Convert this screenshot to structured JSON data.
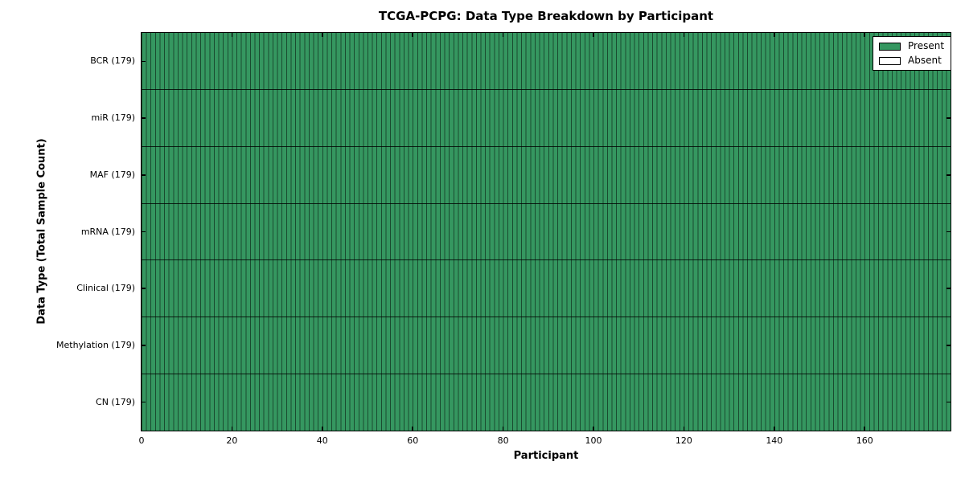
{
  "chart_data": {
    "type": "heatmap",
    "title": "TCGA-PCPG: Data Type Breakdown by Participant",
    "xlabel": "Participant",
    "ylabel": "Data Type (Total Sample Count)",
    "n_participants": 179,
    "xlim": [
      0,
      179
    ],
    "x_ticks": [
      0,
      20,
      40,
      60,
      80,
      100,
      120,
      140,
      160
    ],
    "grid": false,
    "rows": [
      {
        "label": "BCR (179)",
        "data_type": "BCR",
        "total_sample_count": 179,
        "present": 179,
        "absent": 0
      },
      {
        "label": "miR (179)",
        "data_type": "miR",
        "total_sample_count": 179,
        "present": 179,
        "absent": 0
      },
      {
        "label": "MAF (179)",
        "data_type": "MAF",
        "total_sample_count": 179,
        "present": 179,
        "absent": 0
      },
      {
        "label": "mRNA (179)",
        "data_type": "mRNA",
        "total_sample_count": 179,
        "present": 179,
        "absent": 0
      },
      {
        "label": "Clinical (179)",
        "data_type": "Clinical",
        "total_sample_count": 179,
        "present": 179,
        "absent": 0
      },
      {
        "label": "Methylation (179)",
        "data_type": "Methylation",
        "total_sample_count": 179,
        "present": 179,
        "absent": 0
      },
      {
        "label": "CN (179)",
        "data_type": "CN",
        "total_sample_count": 179,
        "present": 179,
        "absent": 0
      }
    ],
    "colors": {
      "present": "#359760",
      "absent": "#ffffff",
      "cell_edge": "#000000"
    },
    "legend": {
      "position": "upper right",
      "entries": [
        {
          "label": "Present",
          "color": "#359760"
        },
        {
          "label": "Absent",
          "color": "#ffffff"
        }
      ]
    }
  }
}
